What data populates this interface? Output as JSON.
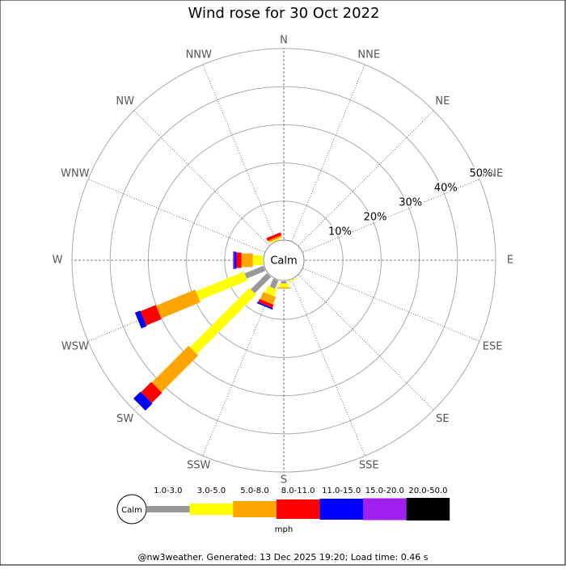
{
  "chart_data": {
    "type": "windrose",
    "title": "Wind rose for 30 Oct 2022",
    "categories": [
      "N",
      "NNE",
      "NE",
      "ENE",
      "E",
      "ESE",
      "SE",
      "SSE",
      "S",
      "SSW",
      "SW",
      "WSW",
      "W",
      "WNW",
      "NW",
      "NNW"
    ],
    "calm_label": "Calm",
    "rlim": [
      0,
      50
    ],
    "rticks": [
      {
        "value": 10,
        "label": "10%"
      },
      {
        "value": 20,
        "label": "20%"
      },
      {
        "value": 30,
        "label": "30%"
      },
      {
        "value": 40,
        "label": "40%"
      },
      {
        "value": 50,
        "label": "50%"
      }
    ],
    "legend_unit": "mph",
    "series": [
      {
        "name": "1.0-3.0",
        "color": "#999999",
        "values": [
          0,
          0,
          0,
          0,
          0,
          0,
          0,
          0,
          0.6,
          2.3,
          6.0,
          5.3,
          0,
          0,
          0,
          0
        ]
      },
      {
        "name": "3.0-5.0",
        "color": "#ffff00",
        "values": [
          0,
          0,
          0,
          0,
          0,
          0,
          0,
          0.3,
          1.0,
          1.9,
          22,
          13.6,
          2.6,
          0,
          0,
          0.3
        ]
      },
      {
        "name": "5.0-8.0",
        "color": "#ffa500",
        "values": [
          0,
          0,
          0,
          0,
          0,
          0,
          0,
          0,
          0.3,
          2.1,
          13.6,
          11.1,
          3.0,
          0,
          0,
          0.5
        ]
      },
      {
        "name": "8.0-11.0",
        "color": "#ff0000",
        "values": [
          0,
          0,
          0,
          0,
          0,
          0,
          0,
          0,
          0,
          0.9,
          3.8,
          4.3,
          1.3,
          0,
          0,
          0.8
        ]
      },
      {
        "name": "11.0-15.0",
        "color": "#0000ff",
        "values": [
          0,
          0,
          0,
          0,
          0,
          0,
          0,
          0,
          0,
          0.4,
          2.6,
          1.5,
          0.6,
          0,
          0,
          0
        ]
      },
      {
        "name": "15.0-20.0",
        "color": "#a020f0",
        "values": [
          0,
          0,
          0,
          0,
          0,
          0,
          0,
          0,
          0,
          0,
          0,
          0,
          0.3,
          0,
          0,
          0
        ]
      },
      {
        "name": "20.0-50.0",
        "color": "#000000",
        "values": [
          0,
          0,
          0,
          0,
          0,
          0,
          0,
          0,
          0,
          0,
          0,
          0,
          0,
          0,
          0,
          0
        ]
      }
    ],
    "footer": "@nw3weather. Generated: 13 Dec 2025 19:20; Load time: 0.46 s"
  }
}
